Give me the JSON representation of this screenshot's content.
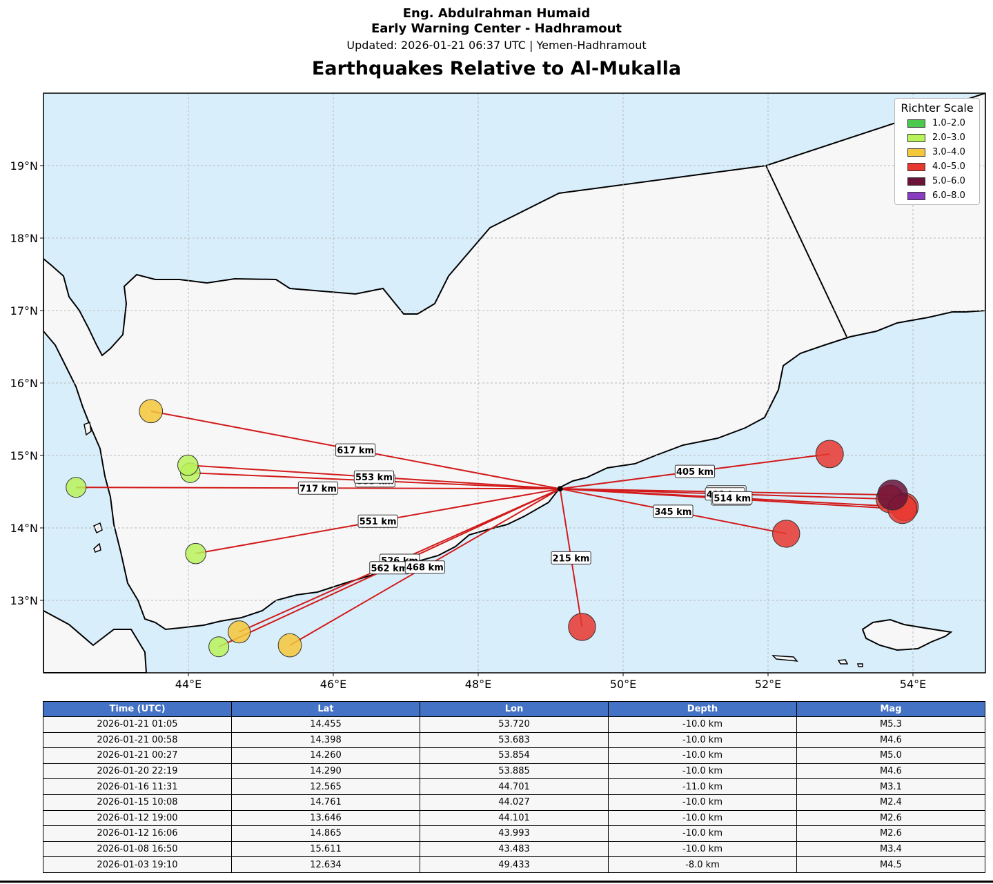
{
  "header": {
    "line1": "Eng. Abdulrahman Humaid",
    "line2": "Early Warning Center - Hadhramout",
    "line3": "Updated: 2026-01-21 06:37 UTC | Yemen-Hadhramout",
    "title": "Earthquakes Relative to Al-Mukalla"
  },
  "map": {
    "center": {
      "lat": 14.54,
      "lon": 49.13
    },
    "lon_range": [
      42.0,
      55.0
    ],
    "lat_range": [
      12.0,
      20.0
    ],
    "lon_ticks": [
      "44°E",
      "46°E",
      "48°E",
      "50°E",
      "52°E",
      "54°E"
    ],
    "lat_ticks": [
      "13°N",
      "14°N",
      "15°N",
      "16°N",
      "17°N",
      "18°N",
      "19°N"
    ],
    "colors": {
      "land": "#f7f7f7",
      "sea": "#d9eefb",
      "line": "#d21a1a"
    },
    "legend": {
      "title": "Richter Scale",
      "items": [
        {
          "label": "1.0–2.0",
          "color": "#4cc84c"
        },
        {
          "label": "2.0–3.0",
          "color": "#b9f25a"
        },
        {
          "label": "3.0–4.0",
          "color": "#f5c73a"
        },
        {
          "label": "4.0–5.0",
          "color": "#e8372f"
        },
        {
          "label": "5.0–6.0",
          "color": "#6a1238"
        },
        {
          "label": "6.0–8.0",
          "color": "#8a3cc0"
        }
      ]
    },
    "quakes": [
      {
        "lat": 14.455,
        "lon": 53.72,
        "mag": 5.3,
        "color": "#6a1238",
        "dist": "496 km"
      },
      {
        "lat": 14.398,
        "lon": 53.683,
        "mag": 4.6,
        "color": "#e8372f",
        "dist": "491 km"
      },
      {
        "lat": 14.26,
        "lon": 53.854,
        "mag": 5.0,
        "color": "#e8372f",
        "dist": "509 km"
      },
      {
        "lat": 14.29,
        "lon": 53.885,
        "mag": 4.6,
        "color": "#e8372f",
        "dist": "514 km"
      },
      {
        "lat": 12.565,
        "lon": 44.701,
        "mag": 3.1,
        "color": "#f5c73a",
        "dist": "526 km"
      },
      {
        "lat": 14.761,
        "lon": 44.027,
        "mag": 2.4,
        "color": "#b9f25a",
        "dist": "553 km"
      },
      {
        "lat": 13.646,
        "lon": 44.101,
        "mag": 2.6,
        "color": "#b9f25a",
        "dist": "551 km"
      },
      {
        "lat": 14.865,
        "lon": 43.993,
        "mag": 2.6,
        "color": "#b9f25a",
        "dist": "553 km"
      },
      {
        "lat": 15.611,
        "lon": 43.483,
        "mag": 3.4,
        "color": "#f5c73a",
        "dist": "617 km"
      },
      {
        "lat": 12.634,
        "lon": 49.433,
        "mag": 4.5,
        "color": "#e8372f",
        "dist": "215 km"
      },
      {
        "lat": 14.56,
        "lon": 42.45,
        "mag": 2.5,
        "color": "#b9f25a",
        "dist": "717 km"
      },
      {
        "lat": 12.36,
        "lon": 44.42,
        "mag": 2.5,
        "color": "#b9f25a",
        "dist": "562 km"
      },
      {
        "lat": 12.38,
        "lon": 45.4,
        "mag": 3.4,
        "color": "#f5c73a",
        "dist": "468 km"
      },
      {
        "lat": 15.02,
        "lon": 52.85,
        "mag": 4.6,
        "color": "#e8372f",
        "dist": "405 km"
      },
      {
        "lat": 13.92,
        "lon": 52.25,
        "mag": 4.5,
        "color": "#e8372f",
        "dist": "345 km"
      }
    ]
  },
  "table": {
    "headers": [
      "Time (UTC)",
      "Lat",
      "Lon",
      "Depth",
      "Mag"
    ],
    "rows": [
      [
        "2026-01-21 01:05",
        "14.455",
        "53.720",
        "-10.0 km",
        "M5.3"
      ],
      [
        "2026-01-21 00:58",
        "14.398",
        "53.683",
        "-10.0 km",
        "M4.6"
      ],
      [
        "2026-01-21 00:27",
        "14.260",
        "53.854",
        "-10.0 km",
        "M5.0"
      ],
      [
        "2026-01-20 22:19",
        "14.290",
        "53.885",
        "-10.0 km",
        "M4.6"
      ],
      [
        "2026-01-16 11:31",
        "12.565",
        "44.701",
        "-11.0 km",
        "M3.1"
      ],
      [
        "2026-01-15 10:08",
        "14.761",
        "44.027",
        "-10.0 km",
        "M2.4"
      ],
      [
        "2026-01-12 19:00",
        "13.646",
        "44.101",
        "-10.0 km",
        "M2.6"
      ],
      [
        "2026-01-12 16:06",
        "14.865",
        "43.993",
        "-10.0 km",
        "M2.6"
      ],
      [
        "2026-01-08 16:50",
        "15.611",
        "43.483",
        "-10.0 km",
        "M3.4"
      ],
      [
        "2026-01-03 19:10",
        "12.634",
        "49.433",
        "-8.0 km",
        "M4.5"
      ]
    ]
  }
}
